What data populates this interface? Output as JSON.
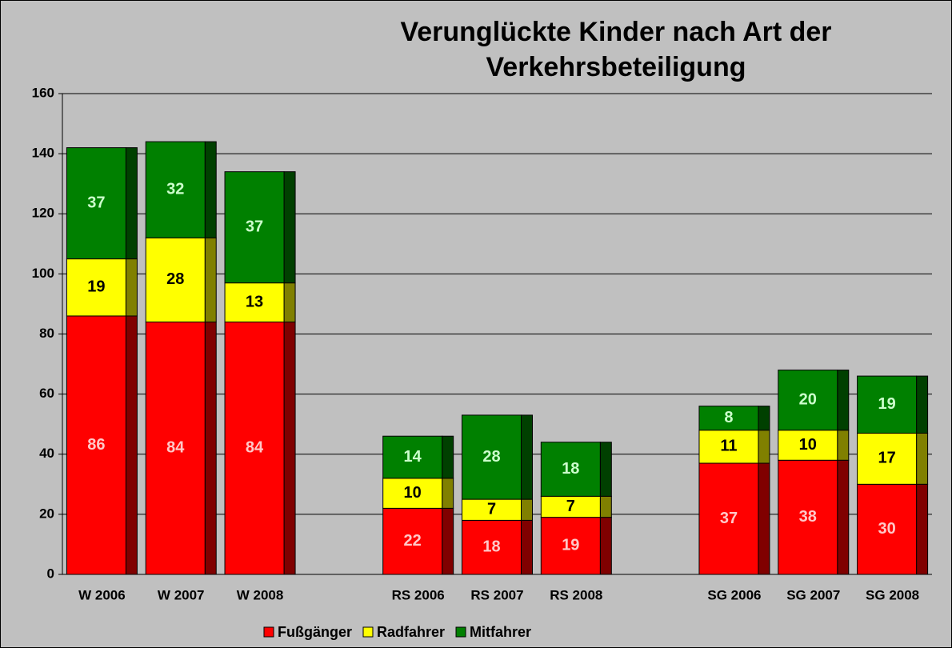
{
  "chart_data": {
    "type": "bar",
    "stacked": true,
    "title": "Verunglückte Kinder nach Art der Verkehrsbeteiligung",
    "categories": [
      "W 2006",
      "W 2007",
      "W 2008",
      null,
      "RS 2006",
      "RS 2007",
      "RS 2008",
      null,
      "SG 2006",
      "SG 2007",
      "SG 2008"
    ],
    "series": [
      {
        "name": "Fußgänger",
        "color": "#ff0000",
        "side_color": "#800000",
        "label_color": "#ffc8c8",
        "values": [
          86,
          84,
          84,
          null,
          22,
          18,
          19,
          null,
          37,
          38,
          30
        ]
      },
      {
        "name": "Radfahrer",
        "color": "#ffff00",
        "side_color": "#808000",
        "label_color": "#000000",
        "values": [
          19,
          28,
          13,
          null,
          10,
          7,
          7,
          null,
          11,
          10,
          17
        ]
      },
      {
        "name": "Mitfahrer",
        "color": "#008000",
        "side_color": "#004000",
        "label_color": "#ccffcc",
        "values": [
          37,
          32,
          37,
          null,
          14,
          28,
          18,
          null,
          8,
          20,
          19
        ]
      }
    ],
    "ylim": [
      0,
      160
    ],
    "yticks": [
      0,
      20,
      40,
      60,
      80,
      100,
      120,
      140,
      160
    ],
    "grid": true,
    "legend": "bottom"
  }
}
